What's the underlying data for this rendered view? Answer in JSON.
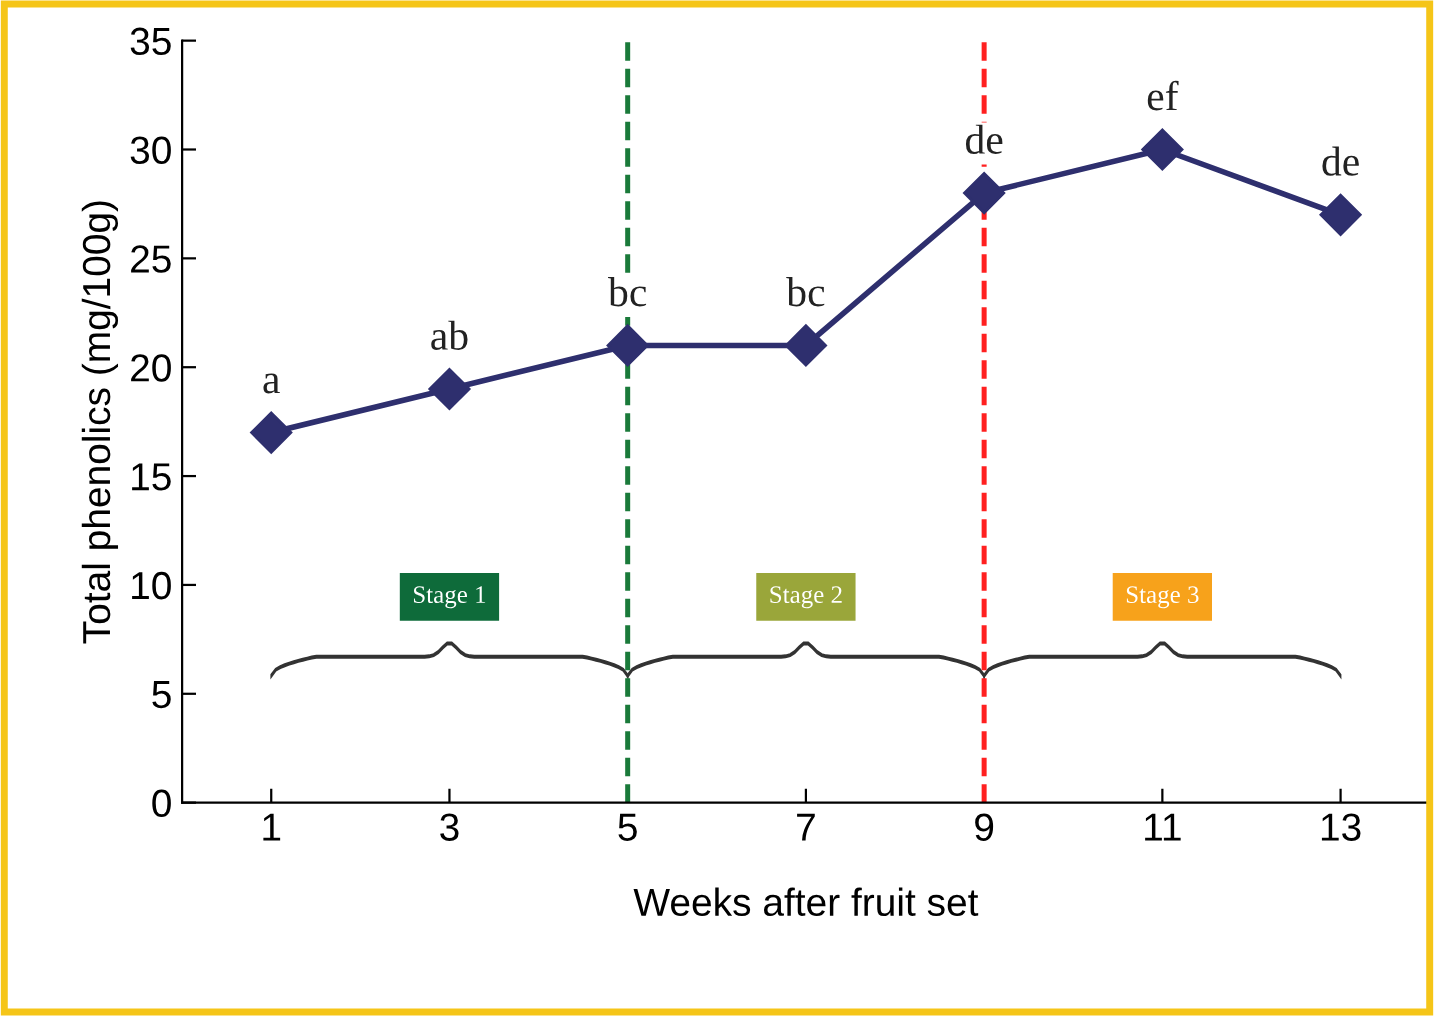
{
  "chart_data": {
    "type": "line",
    "xlabel": "Weeks after fruit set",
    "ylabel": "Total phenolics (mg/100g)",
    "x": [
      1,
      3,
      5,
      7,
      9,
      11,
      13
    ],
    "series": [
      {
        "color": "#2e2f6e",
        "values": [
          17,
          19,
          21,
          21,
          28,
          30,
          27
        ]
      }
    ],
    "xlim": [
      0,
      14
    ],
    "xticks": [
      1,
      3,
      5,
      7,
      9,
      11,
      13
    ],
    "ylim": [
      0,
      35
    ],
    "yticks": [
      0,
      5,
      10,
      15,
      20,
      25,
      30,
      35
    ],
    "marker": "diamond",
    "line_style": "solid",
    "grid": false,
    "ref_lines": [
      {
        "axis": "x",
        "value": 5,
        "color": "#1a7a3a",
        "line_style": "dashed"
      },
      {
        "axis": "x",
        "value": 9,
        "color": "#ff2020",
        "line_style": "dashed"
      }
    ],
    "annotations": [
      {
        "text": "a",
        "x": 1,
        "y": 17
      },
      {
        "text": "ab",
        "x": 3,
        "y": 19
      },
      {
        "text": "bc",
        "x": 5,
        "y": 21
      },
      {
        "text": "bc",
        "x": 7,
        "y": 21
      },
      {
        "text": "de",
        "x": 9,
        "y": 28
      },
      {
        "text": "ef",
        "x": 11,
        "y": 30
      },
      {
        "text": "de",
        "x": 13,
        "y": 27
      },
      "Stage 1",
      "Stage 2",
      "Stage 3"
    ]
  }
}
